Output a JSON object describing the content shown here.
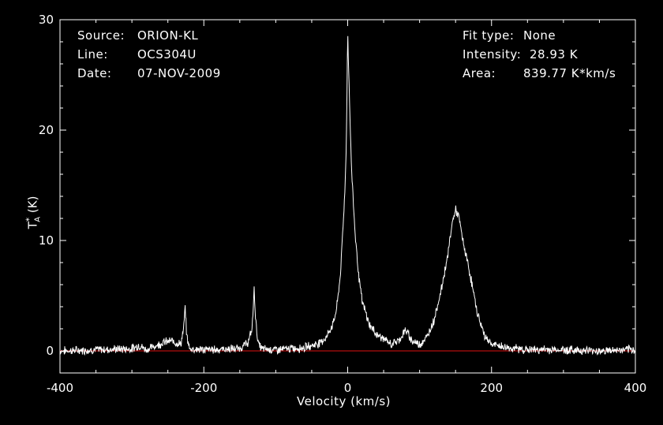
{
  "chart_data": {
    "type": "line",
    "xlabel": "Velocity (km/s)",
    "ylabel_main": "T",
    "ylabel_sub": "A",
    "ylabel_sup": "*",
    "ylabel_unit": "(K)",
    "xlim": [
      -400,
      400
    ],
    "ylim": [
      -2,
      30
    ],
    "xticks": [
      -400,
      -200,
      0,
      200,
      400
    ],
    "yticks": [
      0,
      10,
      20,
      30
    ],
    "baseline": 0,
    "colors": {
      "background": "#000000",
      "line": "#ffffff",
      "baseline": "#e01010",
      "axes": "#ffffff"
    },
    "series": [
      {
        "x": [
          -400,
          -350,
          -300,
          -290,
          -280,
          -255,
          -245,
          -232,
          -228,
          -226,
          -224,
          -220,
          -200,
          -150,
          -138,
          -133,
          -130,
          -128,
          -125,
          -120,
          -100,
          -60,
          -40,
          -30,
          -20,
          -15,
          -10,
          -5,
          -2,
          0,
          2,
          5,
          10,
          15,
          20,
          30,
          40,
          50,
          60,
          70,
          75,
          80,
          85,
          90,
          100,
          110,
          120,
          130,
          140,
          145,
          150,
          155,
          160,
          170,
          180,
          190,
          200,
          220,
          250,
          300,
          350,
          400
        ],
        "y": [
          0,
          0.1,
          0.2,
          0.5,
          0.1,
          0.8,
          0.9,
          0.6,
          2,
          4,
          1.5,
          0.2,
          0.1,
          0.2,
          0.8,
          2,
          5.5,
          3,
          0.8,
          0.2,
          0.1,
          0.3,
          0.7,
          1.2,
          2.5,
          4,
          7,
          13,
          18,
          28.9,
          24,
          17,
          11,
          7,
          4.5,
          2.4,
          1.5,
          1.1,
          0.6,
          0.9,
          1.3,
          1.9,
          1.4,
          0.9,
          0.6,
          1.2,
          2.8,
          5.5,
          9,
          11.5,
          12.8,
          12,
          10,
          7,
          3.5,
          1.4,
          0.6,
          0.3,
          0.1,
          0.1,
          0,
          0.1
        ]
      }
    ]
  },
  "info": {
    "source_label": "Source:",
    "source_value": "ORION-KL",
    "line_label": "Line:",
    "line_value": "OCS304U",
    "date_label": "Date:",
    "date_value": "07-NOV-2009",
    "fit_label": "Fit type:",
    "fit_value": "None",
    "intensity_label": "Intensity:",
    "intensity_value": "28.93 K",
    "area_label": "Area:",
    "area_value": "839.77 K*km/s"
  }
}
